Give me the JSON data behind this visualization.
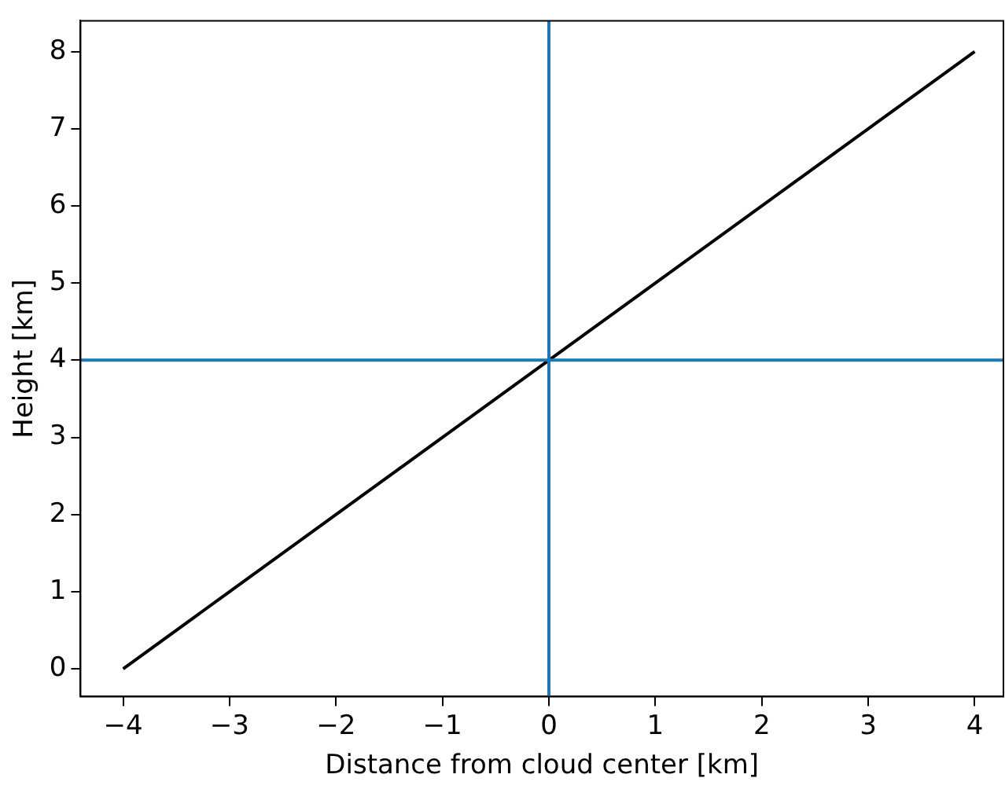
{
  "chart_data": {
    "type": "line",
    "xlabel": "Distance from cloud center [km]",
    "ylabel": "Height [km]",
    "series": [
      {
        "color": "#000000",
        "x": [
          -4,
          4
        ],
        "values": [
          0,
          8
        ]
      }
    ],
    "xlim": [
      -4.4,
      4.27
    ],
    "ylim": [
      -0.36,
      8.4
    ],
    "xticks": [
      {
        "value": -4,
        "label": "−4"
      },
      {
        "value": -3,
        "label": "−3"
      },
      {
        "value": -2,
        "label": "−2"
      },
      {
        "value": -1,
        "label": "−1"
      },
      0,
      1,
      2,
      3,
      4
    ],
    "yticks": [
      0,
      1,
      2,
      3,
      4,
      5,
      6,
      7,
      8
    ],
    "ref_lines": [
      {
        "axis": "x",
        "value": 0,
        "color": "#1f77b4"
      },
      {
        "axis": "y",
        "value": 4,
        "color": "#1f77b4"
      }
    ],
    "grid": false,
    "legend": false,
    "marker": "none",
    "line_style": "solid"
  }
}
